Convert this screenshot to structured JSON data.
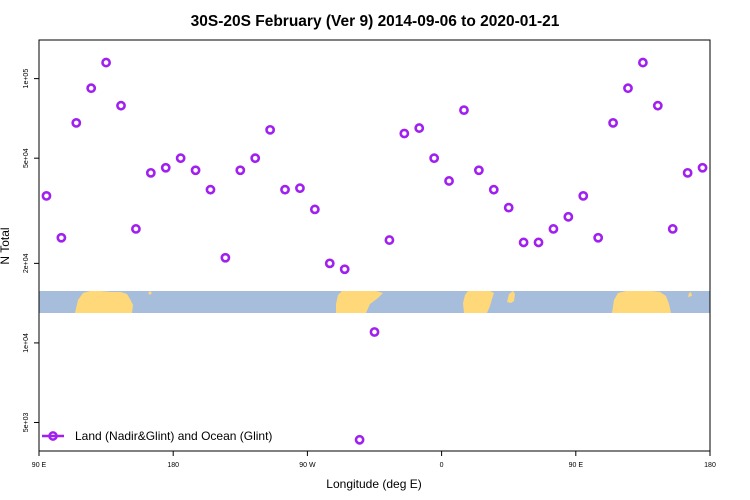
{
  "chart_data": {
    "type": "scatter",
    "title": "30S-20S February (Ver 9)   2014-09-06 to 2020-01-21",
    "xlabel": "Longitude (deg E)",
    "ylabel": "N Total",
    "x_scale": "linear",
    "y_scale": "log",
    "xlim": [
      90,
      540
    ],
    "ylim": [
      3900,
      140000
    ],
    "x_ticks": [
      {
        "value": 90,
        "label": "90 E"
      },
      {
        "value": 180,
        "label": "180"
      },
      {
        "value": 270,
        "label": "90 W"
      },
      {
        "value": 360,
        "label": "0"
      },
      {
        "value": 450,
        "label": "90 E"
      },
      {
        "value": 540,
        "label": "180"
      }
    ],
    "y_ticks": [
      {
        "value": 5000,
        "label": "5e+03"
      },
      {
        "value": 10000,
        "label": "1e+04"
      },
      {
        "value": 20000,
        "label": "2e+04"
      },
      {
        "value": 50000,
        "label": "5e+04"
      },
      {
        "value": 100000,
        "label": "1e+05"
      }
    ],
    "grid": false,
    "legend": {
      "position": "bottom-left"
    },
    "series": [
      {
        "name": "Land (Nadir&Glint) and Ocean (Glint)",
        "color": "#a020f0",
        "marker": "open-circle",
        "x": [
          95,
          105,
          115,
          125,
          135,
          145,
          155,
          165,
          175,
          185,
          195,
          205,
          215,
          225,
          235,
          245,
          255,
          265,
          275,
          285,
          295,
          305,
          315,
          325,
          335,
          345,
          355,
          365,
          375,
          385,
          395,
          405,
          415,
          425,
          435,
          445,
          455,
          465,
          475,
          485,
          495,
          505,
          515,
          525,
          535
        ],
        "y": [
          36000,
          25000,
          68000,
          92000,
          115000,
          79000,
          27000,
          44000,
          46000,
          50000,
          45000,
          38000,
          21000,
          45000,
          50000,
          64000,
          38000,
          38500,
          32000,
          20000,
          19000,
          4300,
          11000,
          24500,
          62000,
          65000,
          50000,
          41000,
          76000,
          45000,
          38000,
          32500,
          24000,
          24000,
          27000,
          30000,
          36000,
          25000,
          68000,
          92000,
          115000,
          79000,
          27000,
          44000,
          46000
        ]
      }
    ],
    "map_strip": {
      "land_color": "#ffd87a",
      "ocean_color": "#a6bddb"
    }
  }
}
